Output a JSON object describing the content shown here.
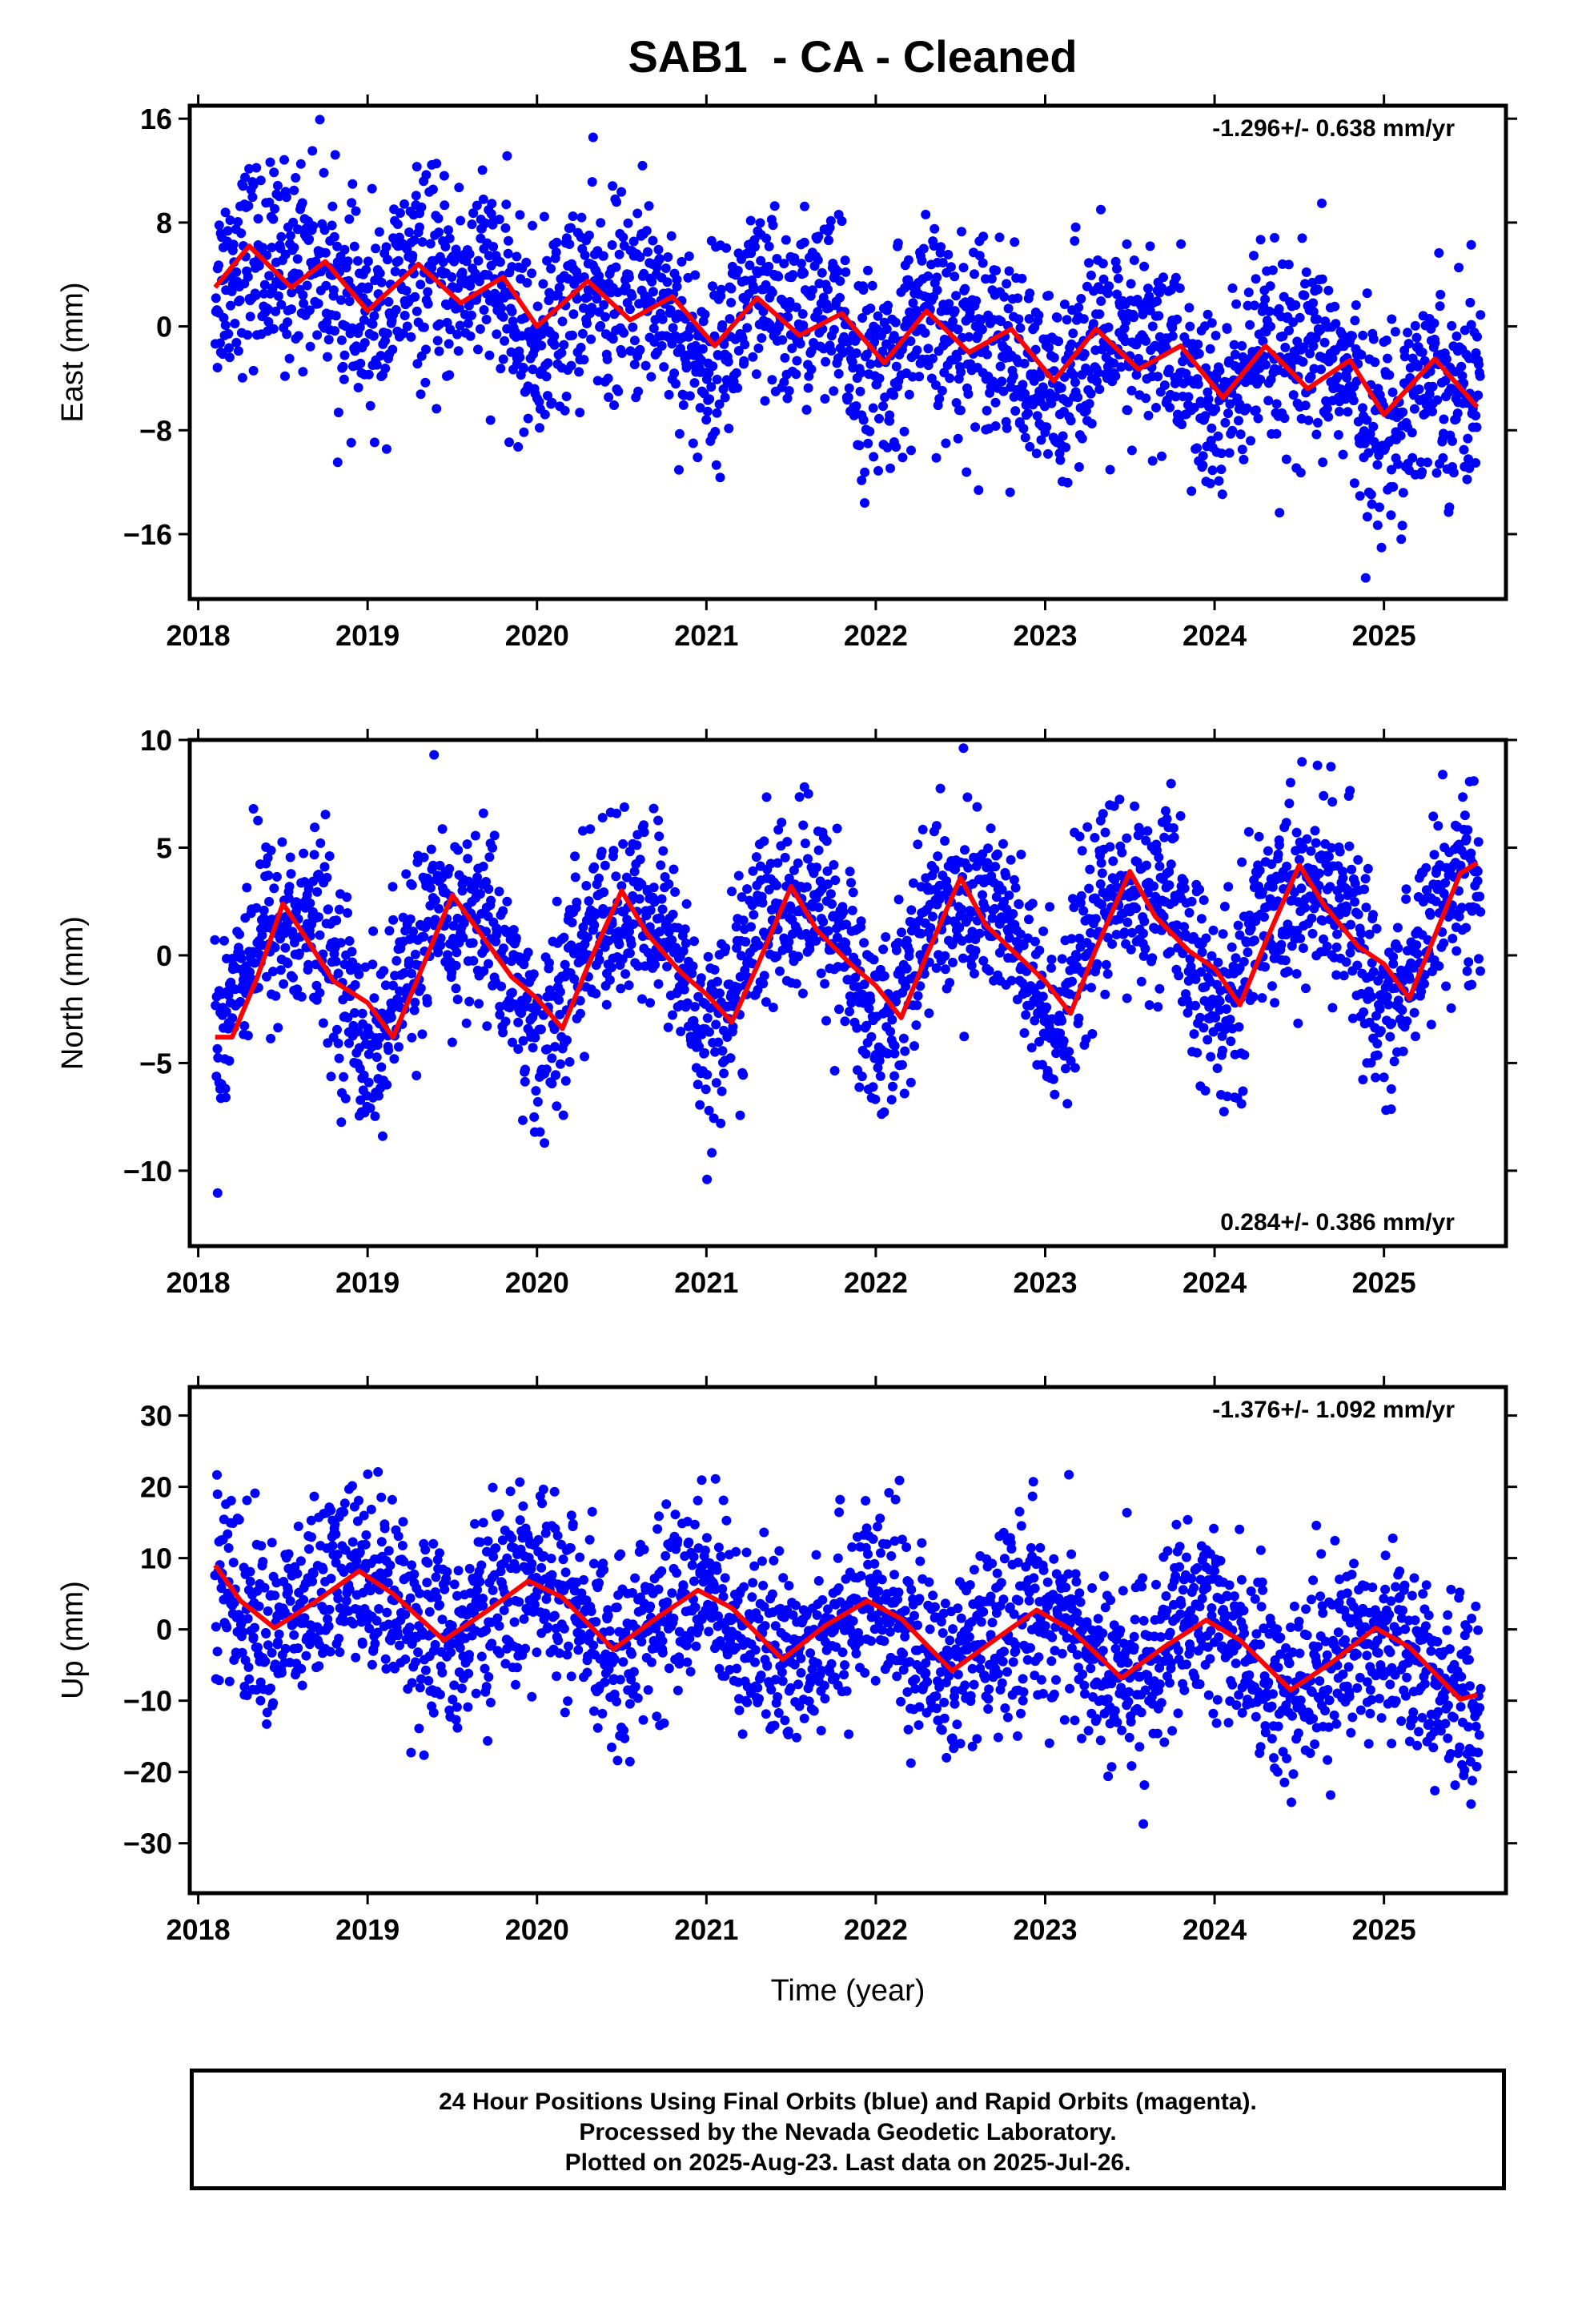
{
  "title": "SAB1  - CA - Cleaned",
  "xlabel": "Time (year)",
  "footer": {
    "line1": "24 Hour Positions Using Final Orbits (blue) and Rapid Orbits (magenta).",
    "line2": "Processed by the Nevada Geodetic Laboratory.",
    "line3": "Plotted on 2025-Aug-23. Last data on 2025-Jul-26."
  },
  "colors": {
    "points": "#0000ff",
    "model": "#ff0000",
    "frame": "#000000"
  },
  "chart_data": [
    {
      "type": "scatter",
      "ylabel": "East (mm)",
      "rate_text": "-1.296+/- 0.638 mm/yr",
      "rate_position": "top-right",
      "xlim": [
        2017.95,
        2025.72
      ],
      "ylim": [
        -21,
        17
      ],
      "x_ticks": [
        2018,
        2019,
        2020,
        2021,
        2022,
        2023,
        2024,
        2025
      ],
      "y_ticks": [
        16,
        8,
        0,
        -8,
        -16
      ],
      "grid": false,
      "series": [
        {
          "kind": "points",
          "trend": {
            "start_year": 2018.1,
            "start_value": 4.2,
            "slope_mm_per_yr": -1.296,
            "annual_amp": 2.0,
            "annual_phase": 0.25,
            "semiannual_amp": 1.2,
            "semiannual_phase": 0.1,
            "scatter_sd": 3.8
          },
          "count": 2400
        },
        {
          "kind": "model_line",
          "points": [
            [
              2018.1,
              3.0
            ],
            [
              2018.3,
              6.2
            ],
            [
              2018.55,
              3.0
            ],
            [
              2018.75,
              5.0
            ],
            [
              2019.0,
              1.2
            ],
            [
              2019.3,
              4.8
            ],
            [
              2019.55,
              1.8
            ],
            [
              2019.8,
              3.8
            ],
            [
              2020.0,
              0.0
            ],
            [
              2020.3,
              3.5
            ],
            [
              2020.55,
              0.5
            ],
            [
              2020.8,
              2.3
            ],
            [
              2021.05,
              -1.5
            ],
            [
              2021.3,
              2.2
            ],
            [
              2021.55,
              -0.7
            ],
            [
              2021.8,
              1.0
            ],
            [
              2022.05,
              -2.8
            ],
            [
              2022.3,
              1.2
            ],
            [
              2022.55,
              -2.0
            ],
            [
              2022.8,
              -0.2
            ],
            [
              2023.05,
              -4.2
            ],
            [
              2023.3,
              -0.2
            ],
            [
              2023.55,
              -3.3
            ],
            [
              2023.8,
              -1.5
            ],
            [
              2024.05,
              -5.5
            ],
            [
              2024.3,
              -1.5
            ],
            [
              2024.55,
              -4.8
            ],
            [
              2024.8,
              -2.6
            ],
            [
              2025.0,
              -6.8
            ],
            [
              2025.3,
              -2.5
            ],
            [
              2025.55,
              -6.2
            ]
          ]
        }
      ]
    },
    {
      "type": "scatter",
      "ylabel": "North (mm)",
      "rate_text": "0.284+/- 0.386 mm/yr",
      "rate_position": "bottom-right",
      "xlim": [
        2017.95,
        2025.72
      ],
      "ylim": [
        -13.5,
        10
      ],
      "x_ticks": [
        2018,
        2019,
        2020,
        2021,
        2022,
        2023,
        2024,
        2025
      ],
      "y_ticks": [
        10,
        5,
        0,
        -5,
        -10
      ],
      "grid": false,
      "series": [
        {
          "kind": "points",
          "trend": {
            "start_year": 2018.1,
            "start_value": -0.8,
            "slope_mm_per_yr": 0.284,
            "annual_amp": 2.8,
            "annual_phase": 0.28,
            "semiannual_amp": 0.9,
            "semiannual_phase": 0.15,
            "scatter_sd": 2.2
          },
          "count": 2400
        },
        {
          "kind": "model_line",
          "points": [
            [
              2018.1,
              -3.8
            ],
            [
              2018.2,
              -3.8
            ],
            [
              2018.35,
              -1.0
            ],
            [
              2018.5,
              2.4
            ],
            [
              2018.62,
              1.0
            ],
            [
              2018.8,
              -1.2
            ],
            [
              2019.0,
              -2.2
            ],
            [
              2019.15,
              -3.8
            ],
            [
              2019.3,
              -1.0
            ],
            [
              2019.5,
              2.8
            ],
            [
              2019.65,
              1.2
            ],
            [
              2019.85,
              -1.0
            ],
            [
              2020.0,
              -2.0
            ],
            [
              2020.15,
              -3.4
            ],
            [
              2020.3,
              -0.5
            ],
            [
              2020.5,
              3.0
            ],
            [
              2020.65,
              1.0
            ],
            [
              2020.85,
              -0.8
            ],
            [
              2021.0,
              -1.8
            ],
            [
              2021.15,
              -3.1
            ],
            [
              2021.3,
              -0.5
            ],
            [
              2021.5,
              3.2
            ],
            [
              2021.65,
              1.2
            ],
            [
              2021.85,
              -0.4
            ],
            [
              2022.0,
              -1.4
            ],
            [
              2022.15,
              -2.9
            ],
            [
              2022.3,
              0.0
            ],
            [
              2022.5,
              3.6
            ],
            [
              2022.65,
              1.4
            ],
            [
              2022.85,
              -0.1
            ],
            [
              2023.0,
              -1.2
            ],
            [
              2023.15,
              -2.7
            ],
            [
              2023.3,
              0.3
            ],
            [
              2023.5,
              3.9
            ],
            [
              2023.65,
              1.8
            ],
            [
              2023.85,
              0.2
            ],
            [
              2024.0,
              -0.6
            ],
            [
              2024.15,
              -2.3
            ],
            [
              2024.3,
              0.6
            ],
            [
              2024.5,
              4.2
            ],
            [
              2024.65,
              2.3
            ],
            [
              2024.85,
              0.4
            ],
            [
              2025.0,
              -0.4
            ],
            [
              2025.15,
              -2.0
            ],
            [
              2025.3,
              0.9
            ],
            [
              2025.45,
              3.8
            ],
            [
              2025.55,
              4.3
            ]
          ]
        }
      ]
    },
    {
      "type": "scatter",
      "ylabel": "Up (mm)",
      "rate_text": "-1.376+/- 1.092 mm/yr",
      "rate_position": "top-right",
      "xlim": [
        2017.95,
        2025.72
      ],
      "ylim": [
        -37,
        34
      ],
      "x_ticks": [
        2018,
        2019,
        2020,
        2021,
        2022,
        2023,
        2024,
        2025
      ],
      "y_ticks": [
        30,
        20,
        10,
        0,
        -10,
        -20,
        -30
      ],
      "grid": false,
      "series": [
        {
          "kind": "points",
          "trend": {
            "start_year": 2018.1,
            "start_value": 5.0,
            "slope_mm_per_yr": -1.376,
            "annual_amp": 4.5,
            "annual_phase": 0.7,
            "semiannual_amp": 0.5,
            "semiannual_phase": 0.0,
            "scatter_sd": 6.5
          },
          "count": 2400
        },
        {
          "kind": "model_line",
          "points": [
            [
              2018.1,
              9.0
            ],
            [
              2018.25,
              4.0
            ],
            [
              2018.45,
              0.2
            ],
            [
              2018.7,
              4.0
            ],
            [
              2018.95,
              8.2
            ],
            [
              2019.15,
              5.0
            ],
            [
              2019.45,
              -1.5
            ],
            [
              2019.7,
              2.5
            ],
            [
              2019.95,
              6.8
            ],
            [
              2020.15,
              4.5
            ],
            [
              2020.45,
              -2.8
            ],
            [
              2020.7,
              1.5
            ],
            [
              2020.95,
              5.5
            ],
            [
              2021.15,
              3.0
            ],
            [
              2021.45,
              -4.2
            ],
            [
              2021.7,
              0.5
            ],
            [
              2021.95,
              4.0
            ],
            [
              2022.15,
              1.5
            ],
            [
              2022.45,
              -5.8
            ],
            [
              2022.7,
              -1.5
            ],
            [
              2022.95,
              2.7
            ],
            [
              2023.15,
              0.0
            ],
            [
              2023.45,
              -6.8
            ],
            [
              2023.7,
              -2.5
            ],
            [
              2023.95,
              1.3
            ],
            [
              2024.15,
              -1.5
            ],
            [
              2024.45,
              -8.5
            ],
            [
              2024.7,
              -4.5
            ],
            [
              2024.95,
              0.2
            ],
            [
              2025.15,
              -2.5
            ],
            [
              2025.45,
              -9.8
            ],
            [
              2025.55,
              -9.2
            ]
          ]
        }
      ]
    }
  ]
}
